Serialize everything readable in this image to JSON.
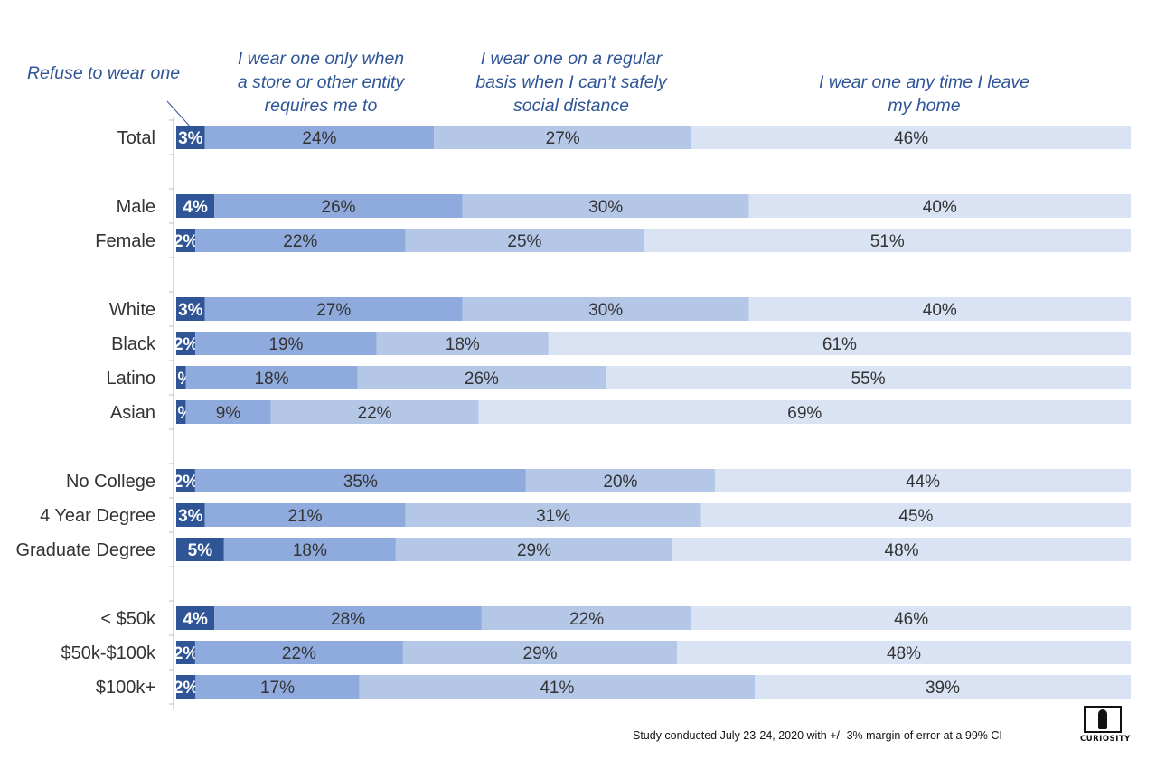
{
  "legend_headers": [
    {
      "id": "refuse",
      "lines": [
        "Refuse to wear one"
      ]
    },
    {
      "id": "store",
      "lines": [
        "I wear one only when",
        "a store or other entity",
        "requires me to"
      ]
    },
    {
      "id": "regular",
      "lines": [
        "I wear one on a regular",
        "basis when I can’t safely",
        "social distance"
      ]
    },
    {
      "id": "always",
      "lines": [
        "I wear one any time I leave",
        "my home"
      ]
    }
  ],
  "footnote": "Study conducted July 23-24, 2020 with +/- 3% margin of error at a 99% CI",
  "logo_text": "CURIOSITY",
  "colors": {
    "refuse": "#2f5597",
    "store": "#8faadc",
    "regular": "#b4c7e7",
    "always": "#dae3f3",
    "header_text": "#2f5597",
    "label_text": "#333333"
  },
  "chart_data": {
    "type": "bar",
    "orientation": "horizontal",
    "stacked": true,
    "normalized_100": true,
    "groups": [
      [
        "Total"
      ],
      [
        "Male",
        "Female"
      ],
      [
        "White",
        "Black",
        "Latino",
        "Asian"
      ],
      [
        "No College",
        "4 Year Degree",
        "Graduate Degree"
      ],
      [
        "< $50k",
        "$50k-$100k",
        "$100k+"
      ]
    ],
    "categories": [
      "Total",
      "Male",
      "Female",
      "White",
      "Black",
      "Latino",
      "Asian",
      "No College",
      "4 Year Degree",
      "Graduate Degree",
      "< $50k",
      "$50k-$100k",
      "$100k+"
    ],
    "series": [
      {
        "name": "Refuse to wear one",
        "labels": [
          "3%",
          "4%",
          "2%",
          "3%",
          "2%",
          "%",
          "%",
          "2%",
          "3%",
          "5%",
          "4%",
          "2%",
          "2%"
        ],
        "values": [
          3,
          4,
          2,
          3,
          2,
          1,
          1,
          2,
          3,
          5,
          4,
          2,
          2
        ]
      },
      {
        "name": "I wear one only when a store or other entity requires me to",
        "labels": [
          "24%",
          "26%",
          "22%",
          "27%",
          "19%",
          "18%",
          "9%",
          "35%",
          "21%",
          "18%",
          "28%",
          "22%",
          "17%"
        ],
        "values": [
          24,
          26,
          22,
          27,
          19,
          18,
          9,
          35,
          21,
          18,
          28,
          22,
          17
        ]
      },
      {
        "name": "I wear one on a regular basis when I can’t safely social distance",
        "labels": [
          "27%",
          "30%",
          "25%",
          "30%",
          "18%",
          "26%",
          "22%",
          "20%",
          "31%",
          "29%",
          "22%",
          "29%",
          "41%"
        ],
        "values": [
          27,
          30,
          25,
          30,
          18,
          26,
          22,
          20,
          31,
          29,
          22,
          29,
          41
        ]
      },
      {
        "name": "I wear one any time I leave my home",
        "labels": [
          "46%",
          "40%",
          "51%",
          "40%",
          "61%",
          "55%",
          "69%",
          "44%",
          "45%",
          "48%",
          "46%",
          "48%",
          "39%"
        ],
        "values": [
          46,
          40,
          51,
          40,
          61,
          55,
          69,
          44,
          45,
          48,
          46,
          48,
          39
        ]
      }
    ]
  }
}
